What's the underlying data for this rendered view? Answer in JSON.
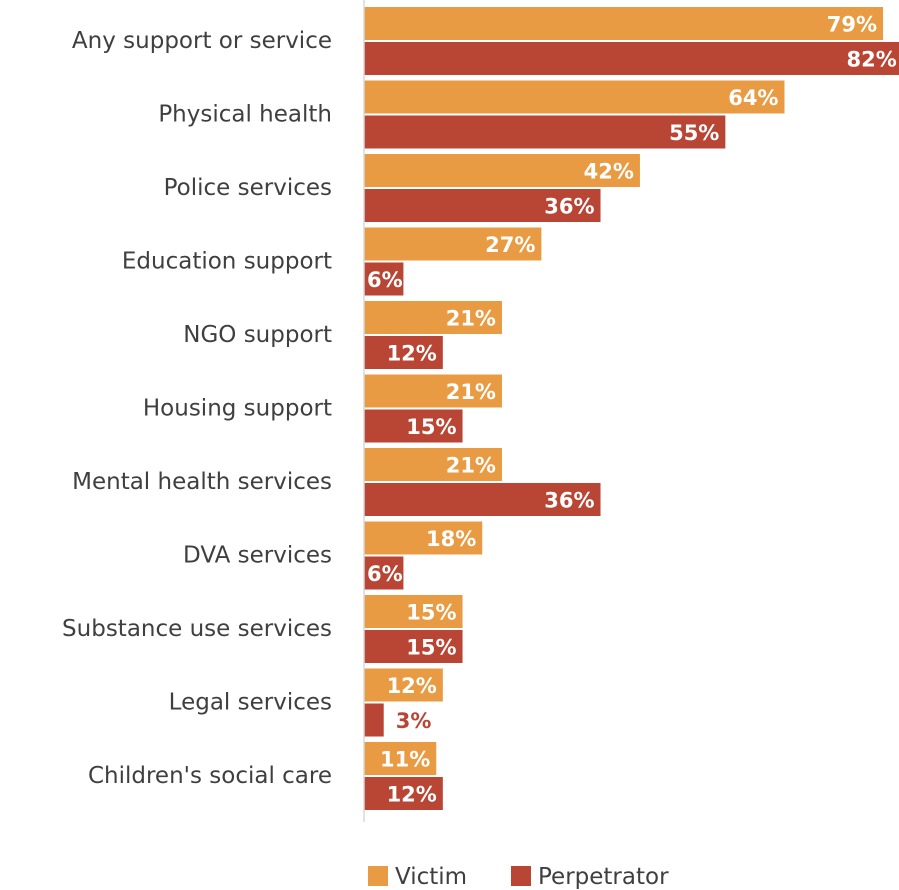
{
  "chart_data": {
    "type": "bar",
    "orientation": "horizontal",
    "categories": [
      "Any support or service",
      "Physical health",
      "Police services",
      "Education support",
      "NGO support",
      "Housing support",
      "Mental health services",
      "DVA services",
      "Substance use services",
      "Legal services",
      "Children's social care"
    ],
    "series": [
      {
        "name": "Victim",
        "color": "#E99B43",
        "values": [
          79,
          64,
          42,
          27,
          21,
          21,
          21,
          18,
          15,
          12,
          11
        ],
        "labels": [
          "79%",
          "64%",
          "42%",
          "27%",
          "21%",
          "21%",
          "21%",
          "18%",
          "15%",
          "12%",
          "11%"
        ]
      },
      {
        "name": "Perpetrator",
        "color": "#B94635",
        "values": [
          82,
          55,
          36,
          6,
          12,
          15,
          36,
          6,
          15,
          3,
          12
        ],
        "labels": [
          "82%",
          "55%",
          "36%",
          "6%",
          "12%",
          "15%",
          "36%",
          "6%",
          "15%",
          "3%",
          "12%"
        ]
      }
    ],
    "xlim": [
      0,
      100
    ],
    "grid": false,
    "legend": "bottom"
  }
}
